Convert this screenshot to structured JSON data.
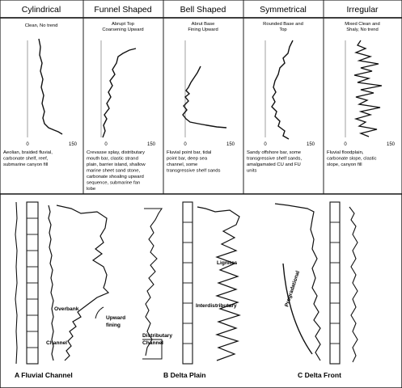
{
  "top_panels": [
    {
      "title": "Cylindrical",
      "subtitle": [
        "Clean, No trend"
      ],
      "tick_min": "0",
      "tick_max": "150",
      "description": [
        "Aeolian, braided fluvial,",
        "carbonate shelf, reef,",
        "submarine canyon fill"
      ]
    },
    {
      "title": "Funnel Shaped",
      "subtitle": [
        "Abrupt Top",
        "Coarsening Upward"
      ],
      "tick_min": "0",
      "tick_max": "150",
      "description": [
        "Crevasse splay, distributary",
        "mouth bar, clastic strand",
        "plain, barrier island, shallow",
        "marine sheet sand stone,",
        "carbonate shoaling upward",
        "sequence, submarine fan",
        "lobe"
      ]
    },
    {
      "title": "Bell Shaped",
      "subtitle": [
        "Abrut Base",
        "Fining Upward"
      ],
      "tick_min": "0",
      "tick_max": "150",
      "description": [
        "Fluvial point bar, tidal",
        "point bar, deep sea",
        "channel, some",
        "transgressive shelf sands"
      ]
    },
    {
      "title": "Symmetrical",
      "subtitle": [
        "Rounded Base and",
        "Top"
      ],
      "tick_min": "0",
      "tick_max": "150",
      "description": [
        "Sandy offshore bar, some",
        "transgressive shelf sands,",
        "amalgamated CU and FU",
        "units"
      ]
    },
    {
      "title": "Irregular",
      "subtitle": [
        "Mixed Clean and",
        "Shaly, No trend"
      ],
      "tick_min": "0",
      "tick_max": "150",
      "description": [
        "Fluvial floodplain,",
        "carbonate slope, clastic",
        "slope, canyon fill"
      ]
    }
  ],
  "bottom": {
    "captions": [
      "A  Fluvial Channel",
      "B  Delta Plain",
      "C  Delta Front"
    ],
    "labels": {
      "overbank": "Overbank",
      "upward": "Upward",
      "fining": "fining",
      "channel": "Channel",
      "lignites": "Lignites",
      "interdistributary": "Interdistributary",
      "distributary": "Distributary",
      "distributary_channel": "Channel",
      "progradational": "Progradational"
    }
  }
}
